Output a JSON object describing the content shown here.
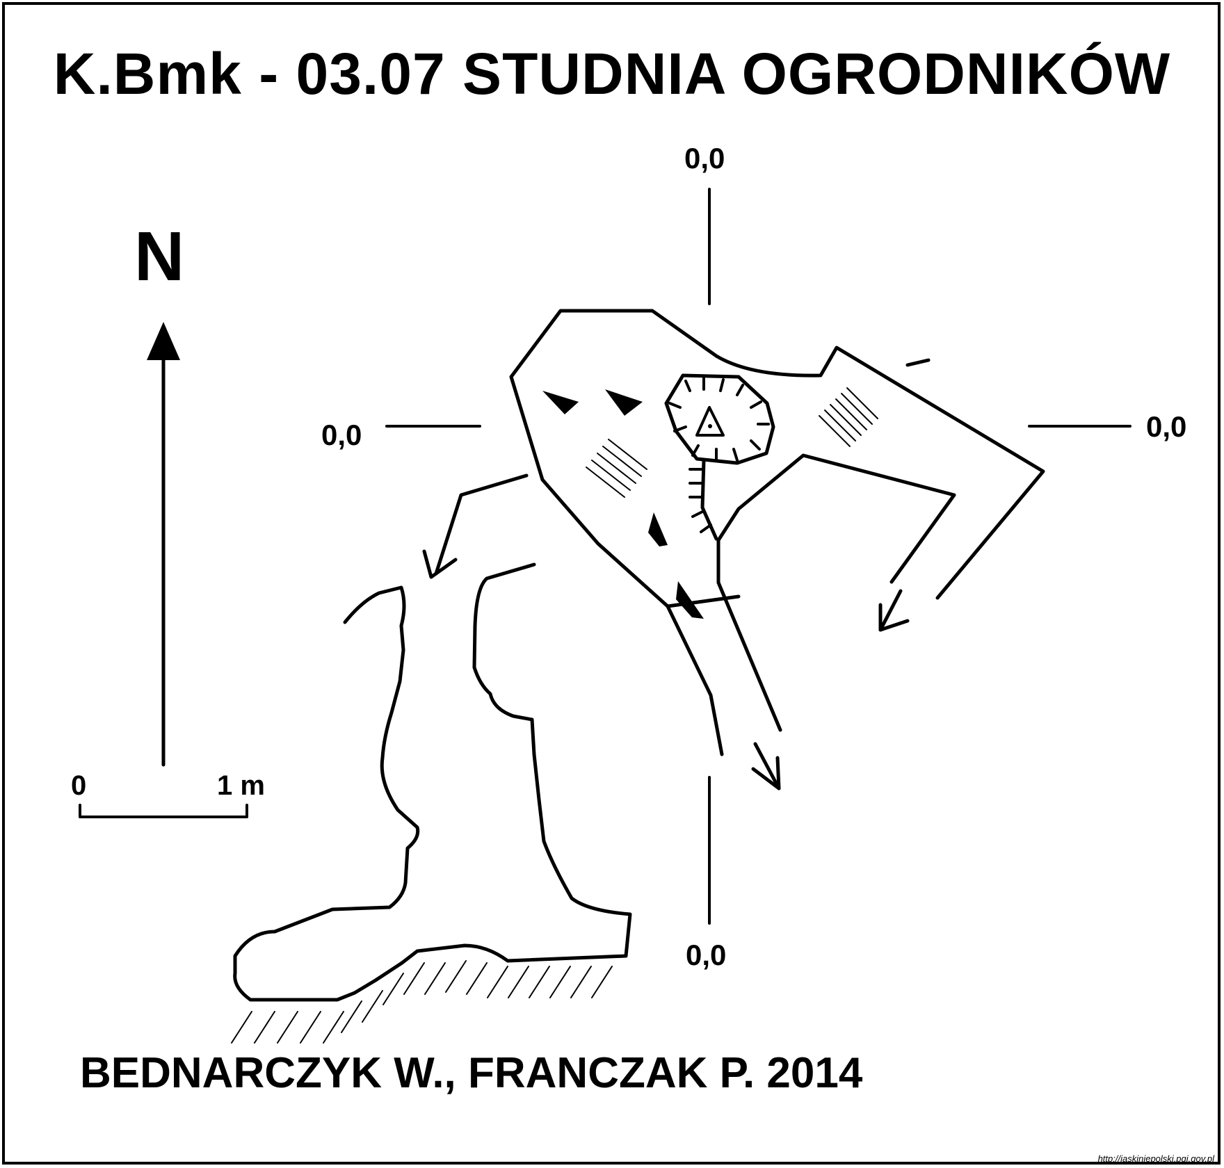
{
  "title": "K.Bmk - 03.07  STUDNIA OGRODNIKÓW",
  "north_arrow": {
    "label": "N"
  },
  "coordinates": {
    "top": "0,0",
    "left": "0,0",
    "right": "0,0",
    "bottom": "0,0"
  },
  "scale_bar": {
    "start_label": "0",
    "end_label": "1 m"
  },
  "authors": "BEDNARCZYK W., FRANCZAK P. 2014",
  "source_url": "http://jaskiniepolski.pgi.gov.pl",
  "colors": {
    "ink": "#000000",
    "background": "#ffffff"
  }
}
